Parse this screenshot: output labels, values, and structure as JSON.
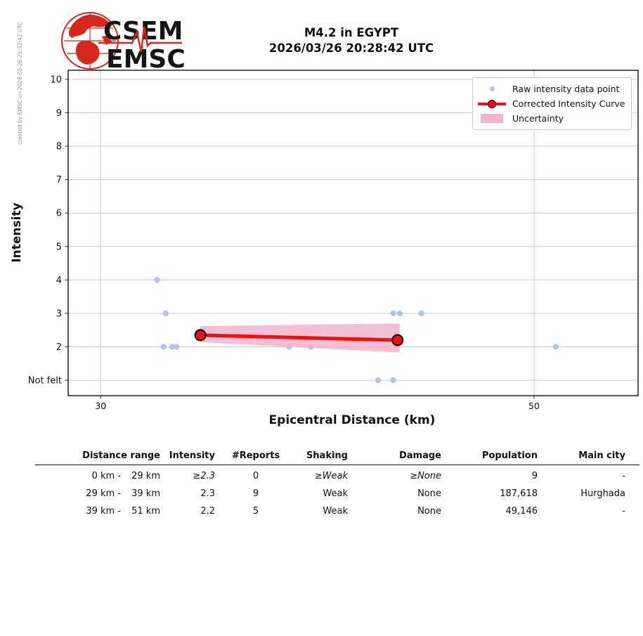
{
  "credit": "created by EMSC on 2026-03-26 21:32:42 UTC",
  "logo": {
    "line1": "CSEM",
    "line2": "EMSC",
    "brand_red": "#d6281e",
    "text_color": "#151515"
  },
  "header": {
    "title_line1": "M4.2 in EGYPT",
    "title_line2": "2026/03/26 20:28:42 UTC"
  },
  "chart_data": {
    "type": "scatter",
    "xlabel": "Epicentral Distance (km)",
    "ylabel": "Intensity",
    "xlim": [
      28.5,
      54.8
    ],
    "ylim": [
      0.54,
      10.27
    ],
    "grid": true,
    "legend_position": "upper right",
    "xticks": [
      {
        "v": 30,
        "label": "30"
      },
      {
        "v": 50,
        "label": "50"
      }
    ],
    "yticks": [
      {
        "v": 1,
        "label": "Not felt"
      },
      {
        "v": 2,
        "label": "2"
      },
      {
        "v": 3,
        "label": "3"
      },
      {
        "v": 4,
        "label": "4"
      },
      {
        "v": 5,
        "label": "5"
      },
      {
        "v": 6,
        "label": "6"
      },
      {
        "v": 7,
        "label": "7"
      },
      {
        "v": 8,
        "label": "8"
      },
      {
        "v": 9,
        "label": "9"
      },
      {
        "v": 10,
        "label": "10"
      }
    ],
    "not_felt_value": 1,
    "series": {
      "raw_points": {
        "label": "Raw intensity data point",
        "color": "#aec1e8",
        "points": [
          [
            32.6,
            4
          ],
          [
            33.0,
            3
          ],
          [
            32.9,
            2
          ],
          [
            33.3,
            2
          ],
          [
            33.5,
            2
          ],
          [
            38.7,
            2
          ],
          [
            39.7,
            2
          ],
          [
            42.8,
            1
          ],
          [
            43.5,
            1
          ],
          [
            43.5,
            3
          ],
          [
            43.8,
            3
          ],
          [
            44.8,
            3
          ],
          [
            51.0,
            2
          ]
        ]
      },
      "corrected_curve": {
        "label": "Corrected Intensity Curve",
        "color": "#ee1111",
        "points": [
          [
            34.6,
            2.35
          ],
          [
            43.7,
            2.2
          ]
        ]
      },
      "uncertainty": {
        "label": "Uncertainty",
        "color": "#f0b4cc",
        "polygon": [
          [
            34.6,
            2.62
          ],
          [
            43.8,
            2.7
          ],
          [
            43.8,
            1.83
          ],
          [
            34.6,
            2.14
          ]
        ]
      }
    }
  },
  "table": {
    "headers": [
      "Distance range",
      "Intensity",
      "#Reports",
      "Shaking",
      "Damage",
      "Population",
      "Main city"
    ],
    "rows": [
      {
        "range_from": "0 km -",
        "range_to": "29 km",
        "intensity": "≥2.3",
        "reports": "0",
        "shaking": "≥Weak",
        "damage": "≥None",
        "population": "9",
        "main_city": "-"
      },
      {
        "range_from": "29 km -",
        "range_to": "39 km",
        "intensity": "2.3",
        "reports": "9",
        "shaking": "Weak",
        "damage": "None",
        "population": "187,618",
        "main_city": "Hurghada"
      },
      {
        "range_from": "39 km -",
        "range_to": "51 km",
        "intensity": "2.2",
        "reports": "5",
        "shaking": "Weak",
        "damage": "None",
        "population": "49,146",
        "main_city": "-"
      }
    ]
  }
}
